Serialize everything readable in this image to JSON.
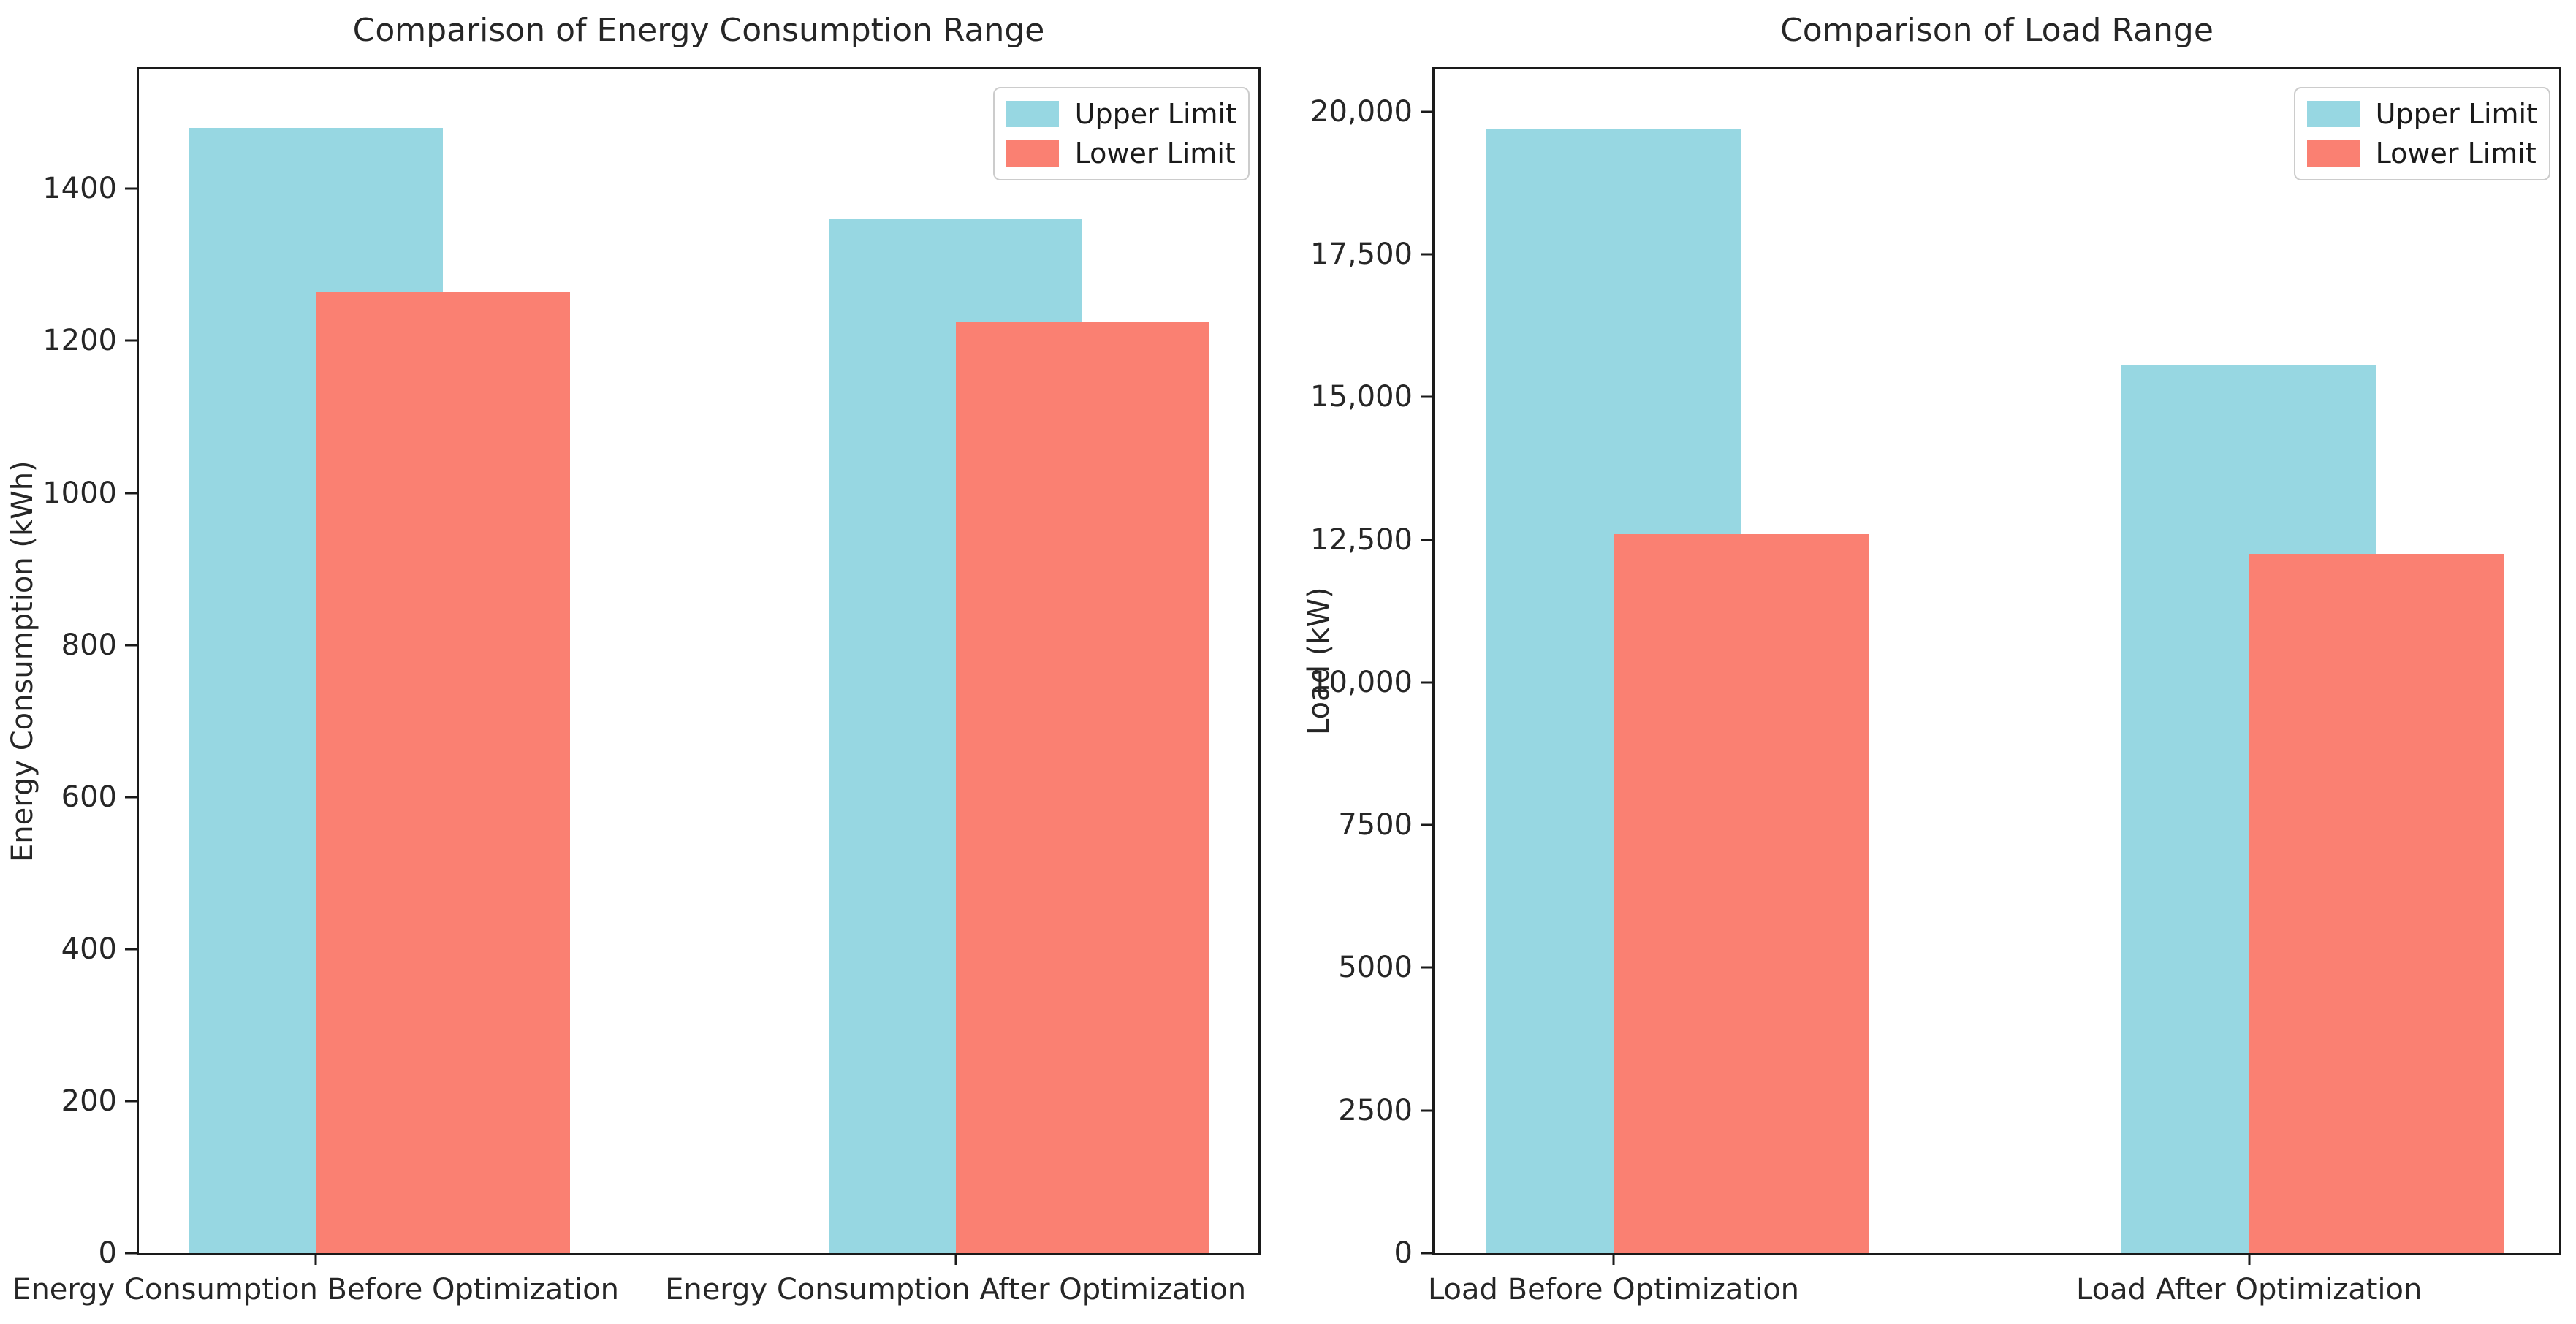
{
  "colors": {
    "upper_limit": "#97d7e2",
    "lower_limit": "#fa8072",
    "axis": "#1a1a1a",
    "text": "#262626",
    "legend_border": "#cccccc",
    "background": "#ffffff"
  },
  "legend": {
    "items": [
      {
        "label": "Upper Limit",
        "color_key": "upper_limit"
      },
      {
        "label": "Lower Limit",
        "color_key": "lower_limit"
      }
    ]
  },
  "chart_data": [
    {
      "type": "bar",
      "title": "Comparison of Energy Consumption Range",
      "xlabel": "",
      "ylabel": "Energy Consumption (kWh)",
      "categories": [
        "Energy Consumption Before Optimization",
        "Energy Consumption After Optimization"
      ],
      "series": [
        {
          "name": "Upper Limit",
          "color_key": "upper_limit",
          "values": [
            1480,
            1360
          ]
        },
        {
          "name": "Lower Limit",
          "color_key": "lower_limit",
          "values": [
            1265,
            1225
          ]
        }
      ],
      "ylim": [
        0,
        1557
      ],
      "yticks": [
        {
          "value": 0,
          "label": "0"
        },
        {
          "value": 200,
          "label": "200"
        },
        {
          "value": 400,
          "label": "400"
        },
        {
          "value": 600,
          "label": "600"
        },
        {
          "value": 800,
          "label": "800"
        },
        {
          "value": 1000,
          "label": "1000"
        },
        {
          "value": 1200,
          "label": "1200"
        },
        {
          "value": 1400,
          "label": "1400"
        }
      ],
      "grid": false,
      "legend_position": "upper right"
    },
    {
      "type": "bar",
      "title": "Comparison of Load Range",
      "xlabel": "",
      "ylabel": "Load (kW)",
      "categories": [
        "Load Before Optimization",
        "Load After Optimization"
      ],
      "series": [
        {
          "name": "Upper Limit",
          "color_key": "upper_limit",
          "values": [
            19700,
            15550
          ]
        },
        {
          "name": "Lower Limit",
          "color_key": "lower_limit",
          "values": [
            12600,
            12250
          ]
        }
      ],
      "ylim": [
        0,
        20740
      ],
      "yticks": [
        {
          "value": 0,
          "label": "0"
        },
        {
          "value": 2500,
          "label": "2500"
        },
        {
          "value": 5000,
          "label": "5000"
        },
        {
          "value": 7500,
          "label": "7500"
        },
        {
          "value": 10000,
          "label": "10,000"
        },
        {
          "value": 12500,
          "label": "12,500"
        },
        {
          "value": 15000,
          "label": "15,000"
        },
        {
          "value": 17500,
          "label": "17,500"
        },
        {
          "value": 20000,
          "label": "20,000"
        }
      ],
      "grid": false,
      "legend_position": "upper right"
    }
  ]
}
